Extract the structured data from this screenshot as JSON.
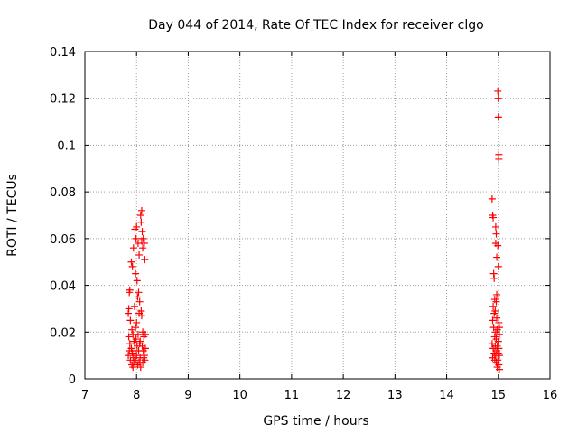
{
  "chart_data": {
    "type": "scatter",
    "title": "Day 044 of 2014, Rate Of TEC Index for receiver clgo",
    "xlabel": "GPS time / hours",
    "ylabel": "ROTI / TECUs",
    "xlim": [
      7,
      16
    ],
    "ylim": [
      0,
      0.14
    ],
    "x_ticks": [
      7,
      8,
      9,
      10,
      11,
      12,
      13,
      14,
      15,
      16
    ],
    "x_tick_labels": [
      "7",
      "8",
      "9",
      "10",
      "11",
      "12",
      "13",
      "14",
      "15",
      "16"
    ],
    "y_ticks": [
      0,
      0.02,
      0.04,
      0.06,
      0.08,
      0.1,
      0.12,
      0.14
    ],
    "y_tick_labels": [
      "0",
      "0.02",
      "0.04",
      "0.06",
      "0.08",
      "0.1",
      "0.12",
      "0.14"
    ],
    "grid": true,
    "marker": "+",
    "series": [
      {
        "name": "ROTI",
        "color": "#ff0000",
        "points": [
          [
            7.87,
            0.038
          ],
          [
            7.86,
            0.037
          ],
          [
            7.85,
            0.03
          ],
          [
            7.84,
            0.028
          ],
          [
            7.88,
            0.025
          ],
          [
            7.85,
            0.018
          ],
          [
            7.87,
            0.015
          ],
          [
            7.86,
            0.012
          ],
          [
            7.84,
            0.01
          ],
          [
            7.88,
            0.008
          ],
          [
            7.9,
            0.05
          ],
          [
            7.92,
            0.048
          ],
          [
            7.94,
            0.056
          ],
          [
            7.91,
            0.021
          ],
          [
            7.93,
            0.019
          ],
          [
            7.95,
            0.016
          ],
          [
            7.9,
            0.013
          ],
          [
            7.92,
            0.011
          ],
          [
            7.94,
            0.009
          ],
          [
            7.96,
            0.007
          ],
          [
            7.91,
            0.006
          ],
          [
            7.93,
            0.005
          ],
          [
            7.97,
            0.064
          ],
          [
            7.98,
            0.045
          ],
          [
            7.99,
            0.06
          ],
          [
            8.0,
            0.065
          ],
          [
            8.01,
            0.042
          ],
          [
            8.0,
            0.024
          ],
          [
            7.98,
            0.022
          ],
          [
            7.99,
            0.017
          ],
          [
            8.01,
            0.014
          ],
          [
            7.97,
            0.012
          ],
          [
            8.0,
            0.01
          ],
          [
            7.98,
            0.008
          ],
          [
            8.02,
            0.006
          ],
          [
            8.03,
            0.058
          ],
          [
            8.05,
            0.053
          ],
          [
            8.04,
            0.037
          ],
          [
            8.06,
            0.033
          ],
          [
            8.05,
            0.028
          ],
          [
            8.03,
            0.019
          ],
          [
            8.06,
            0.015
          ],
          [
            8.04,
            0.012
          ],
          [
            8.07,
            0.009
          ],
          [
            8.05,
            0.007
          ],
          [
            8.08,
            0.005
          ],
          [
            8.08,
            0.07
          ],
          [
            8.1,
            0.072
          ],
          [
            8.09,
            0.067
          ],
          [
            8.11,
            0.063
          ],
          [
            8.1,
            0.059
          ],
          [
            8.12,
            0.056
          ],
          [
            8.13,
            0.06
          ],
          [
            8.15,
            0.058
          ],
          [
            8.16,
            0.051
          ],
          [
            8.09,
            0.029
          ],
          [
            8.1,
            0.027
          ],
          [
            8.12,
            0.02
          ],
          [
            8.14,
            0.018
          ],
          [
            8.11,
            0.014
          ],
          [
            8.13,
            0.012
          ],
          [
            8.15,
            0.01
          ],
          [
            8.16,
            0.008
          ],
          [
            8.12,
            0.007
          ],
          [
            8.14,
            0.009
          ],
          [
            8.17,
            0.013
          ],
          [
            8.17,
            0.019
          ],
          [
            8.07,
            0.016
          ],
          [
            7.96,
            0.031
          ],
          [
            8.02,
            0.035
          ],
          [
            14.88,
            0.077
          ],
          [
            14.89,
            0.07
          ],
          [
            14.9,
            0.069
          ],
          [
            14.91,
            0.045
          ],
          [
            14.92,
            0.043
          ],
          [
            14.93,
            0.034
          ],
          [
            14.9,
            0.031
          ],
          [
            14.92,
            0.028
          ],
          [
            14.89,
            0.025
          ],
          [
            14.91,
            0.022
          ],
          [
            14.88,
            0.015
          ],
          [
            14.9,
            0.013
          ],
          [
            14.92,
            0.011
          ],
          [
            14.89,
            0.009
          ],
          [
            14.93,
            0.008
          ],
          [
            14.95,
            0.065
          ],
          [
            14.96,
            0.062
          ],
          [
            14.95,
            0.058
          ],
          [
            14.97,
            0.052
          ],
          [
            14.96,
            0.033
          ],
          [
            14.94,
            0.029
          ],
          [
            14.97,
            0.026
          ],
          [
            14.95,
            0.02
          ],
          [
            14.96,
            0.017
          ],
          [
            14.94,
            0.014
          ],
          [
            14.97,
            0.012
          ],
          [
            14.95,
            0.01
          ],
          [
            14.96,
            0.007
          ],
          [
            14.98,
            0.005
          ],
          [
            14.99,
            0.123
          ],
          [
            15.0,
            0.12
          ],
          [
            15.0,
            0.112
          ],
          [
            15.01,
            0.096
          ],
          [
            15.01,
            0.094
          ],
          [
            14.99,
            0.057
          ],
          [
            15.0,
            0.048
          ],
          [
            15.01,
            0.024
          ],
          [
            15.02,
            0.019
          ],
          [
            15.0,
            0.016
          ],
          [
            15.01,
            0.013
          ],
          [
            15.02,
            0.01
          ],
          [
            14.99,
            0.008
          ],
          [
            15.01,
            0.006
          ],
          [
            15.02,
            0.004
          ],
          [
            14.98,
            0.021
          ],
          [
            14.97,
            0.036
          ],
          [
            14.93,
            0.018
          ],
          [
            15.02,
            0.022
          ],
          [
            14.98,
            0.014
          ],
          [
            15.0,
            0.011
          ]
        ]
      }
    ]
  }
}
